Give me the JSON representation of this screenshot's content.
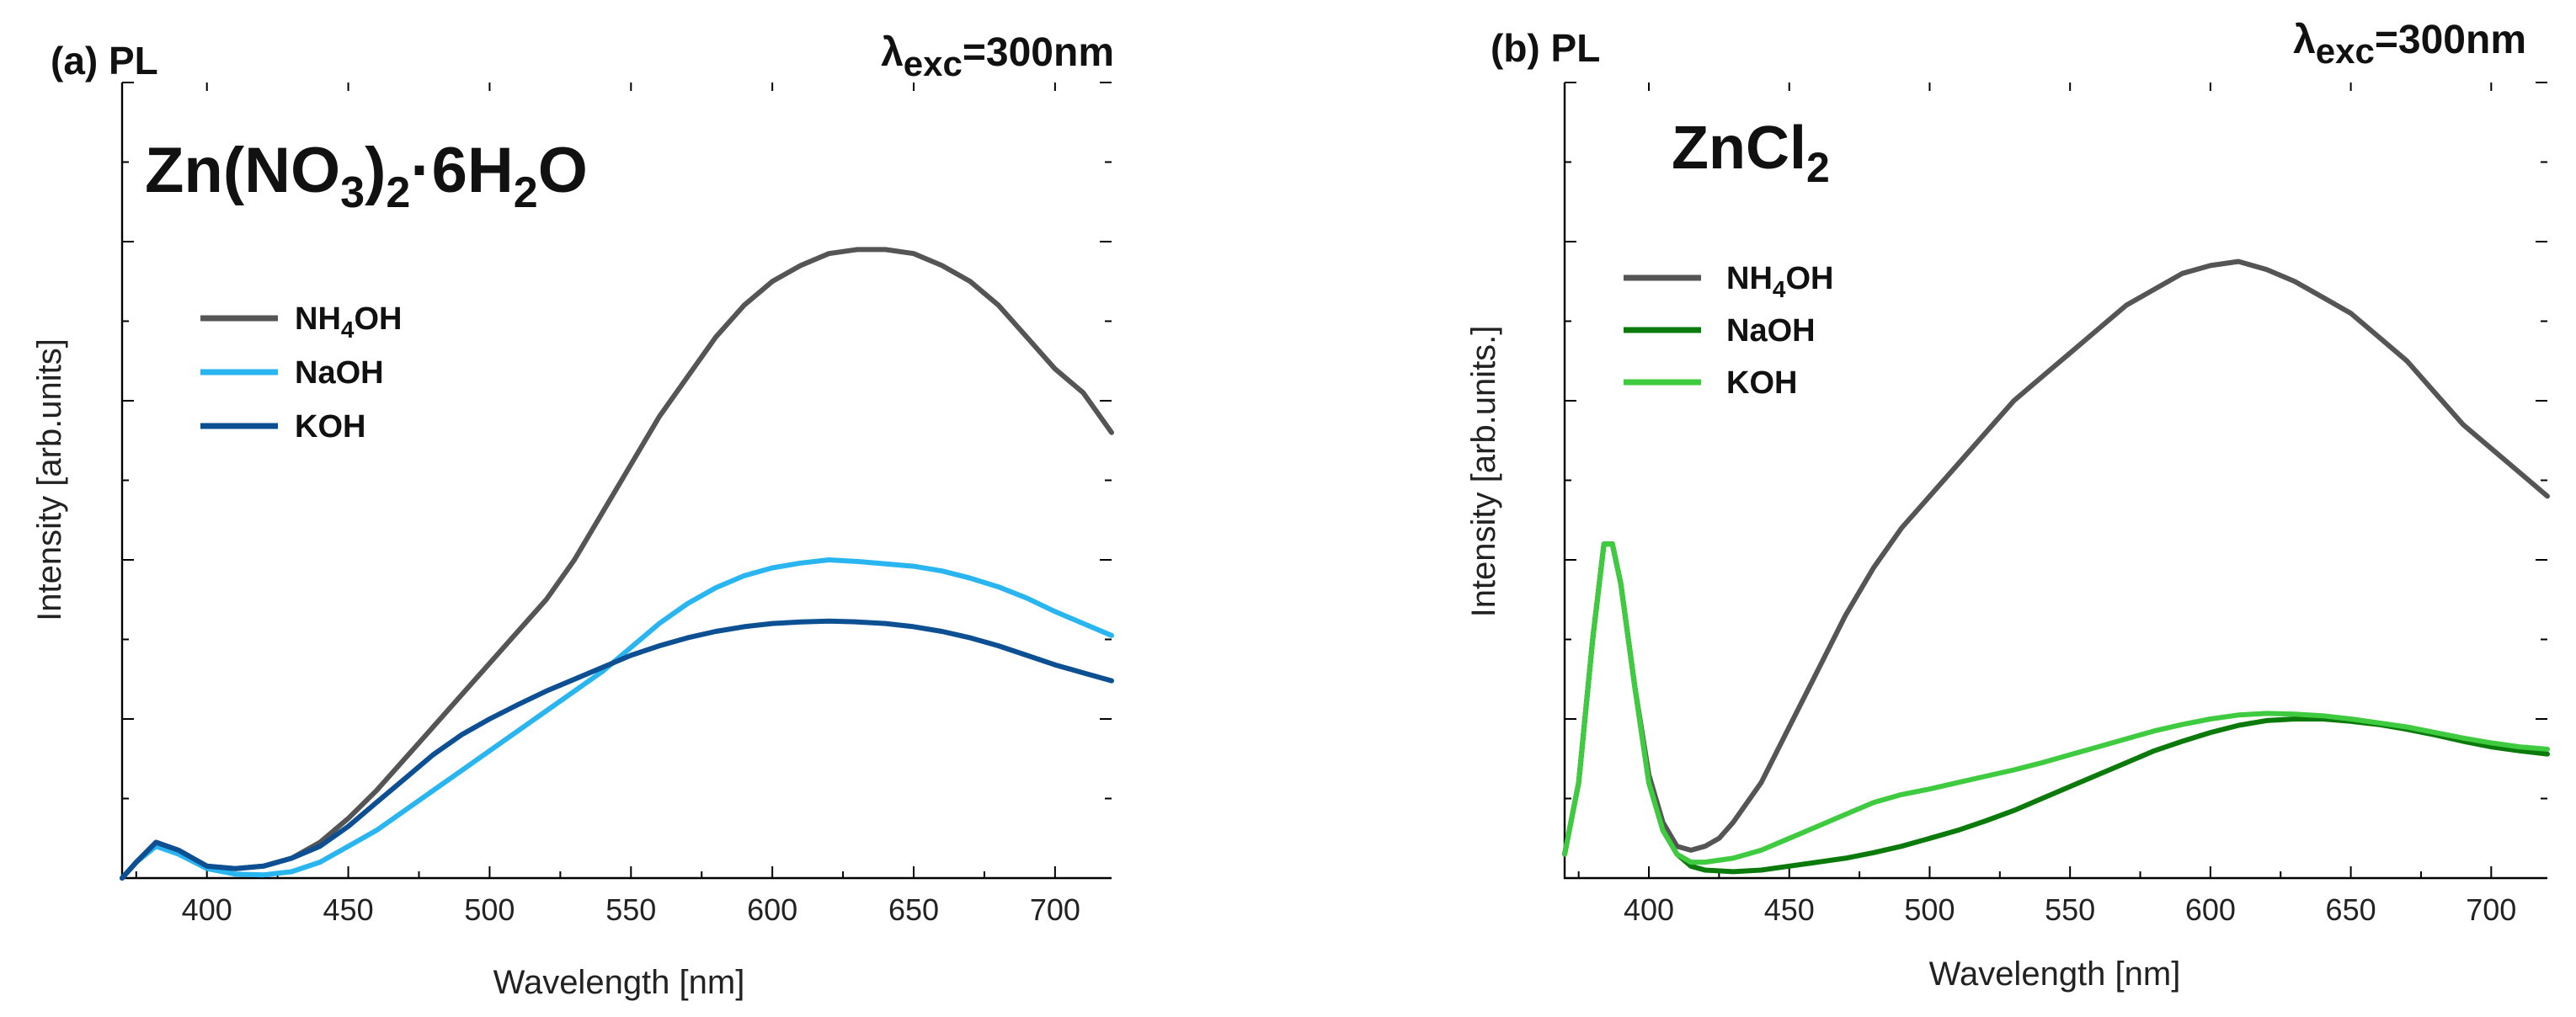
{
  "chart_data": [
    {
      "type": "line",
      "panel_label": "(a) PL",
      "excitation": {
        "symbol": "λ",
        "subscript": "exc",
        "value": "=300nm"
      },
      "compound": {
        "t1": "Zn(NO",
        "sub1": "3",
        "t2": ")",
        "sub2": "2",
        "t3": "·6H",
        "sub3": "2",
        "t4": "O"
      },
      "xlabel": "Wavelength [nm]",
      "ylabel": "Intensity [arb.units]",
      "xlim": [
        370,
        720
      ],
      "ylim": [
        0,
        1.0
      ],
      "x_ticks": [
        400,
        450,
        500,
        550,
        600,
        650,
        700
      ],
      "series": [
        {
          "name": "NH4OH",
          "label_parts": [
            "NH",
            "4",
            "OH"
          ],
          "color": "#555555",
          "points": [
            [
              370,
              0.0
            ],
            [
              375,
              0.02
            ],
            [
              382,
              0.045
            ],
            [
              390,
              0.035
            ],
            [
              400,
              0.015
            ],
            [
              410,
              0.012
            ],
            [
              420,
              0.015
            ],
            [
              430,
              0.025
            ],
            [
              440,
              0.045
            ],
            [
              450,
              0.075
            ],
            [
              460,
              0.11
            ],
            [
              470,
              0.15
            ],
            [
              480,
              0.19
            ],
            [
              490,
              0.23
            ],
            [
              500,
              0.27
            ],
            [
              510,
              0.31
            ],
            [
              520,
              0.35
            ],
            [
              530,
              0.4
            ],
            [
              540,
              0.46
            ],
            [
              550,
              0.52
            ],
            [
              560,
              0.58
            ],
            [
              570,
              0.63
            ],
            [
              580,
              0.68
            ],
            [
              590,
              0.72
            ],
            [
              600,
              0.75
            ],
            [
              610,
              0.77
            ],
            [
              620,
              0.785
            ],
            [
              630,
              0.79
            ],
            [
              640,
              0.79
            ],
            [
              650,
              0.785
            ],
            [
              660,
              0.77
            ],
            [
              670,
              0.75
            ],
            [
              680,
              0.72
            ],
            [
              690,
              0.68
            ],
            [
              700,
              0.64
            ],
            [
              710,
              0.61
            ],
            [
              720,
              0.56
            ]
          ]
        },
        {
          "name": "NaOH",
          "label_parts": [
            "NaOH",
            "",
            ""
          ],
          "color": "#29B5F0",
          "points": [
            [
              370,
              0.0
            ],
            [
              375,
              0.02
            ],
            [
              382,
              0.04
            ],
            [
              390,
              0.03
            ],
            [
              400,
              0.012
            ],
            [
              410,
              0.005
            ],
            [
              420,
              0.004
            ],
            [
              430,
              0.008
            ],
            [
              440,
              0.02
            ],
            [
              450,
              0.04
            ],
            [
              460,
              0.06
            ],
            [
              470,
              0.085
            ],
            [
              480,
              0.11
            ],
            [
              490,
              0.135
            ],
            [
              500,
              0.16
            ],
            [
              510,
              0.185
            ],
            [
              520,
              0.21
            ],
            [
              530,
              0.235
            ],
            [
              540,
              0.26
            ],
            [
              550,
              0.29
            ],
            [
              560,
              0.32
            ],
            [
              570,
              0.345
            ],
            [
              580,
              0.365
            ],
            [
              590,
              0.38
            ],
            [
              600,
              0.39
            ],
            [
              610,
              0.396
            ],
            [
              620,
              0.4
            ],
            [
              630,
              0.398
            ],
            [
              640,
              0.395
            ],
            [
              650,
              0.392
            ],
            [
              660,
              0.386
            ],
            [
              670,
              0.377
            ],
            [
              680,
              0.366
            ],
            [
              690,
              0.352
            ],
            [
              700,
              0.335
            ],
            [
              710,
              0.32
            ],
            [
              720,
              0.305
            ]
          ]
        },
        {
          "name": "KOH",
          "label_parts": [
            "KOH",
            "",
            ""
          ],
          "color": "#0D4F93",
          "points": [
            [
              370,
              0.0
            ],
            [
              375,
              0.02
            ],
            [
              382,
              0.045
            ],
            [
              390,
              0.035
            ],
            [
              400,
              0.015
            ],
            [
              410,
              0.012
            ],
            [
              420,
              0.015
            ],
            [
              430,
              0.025
            ],
            [
              440,
              0.04
            ],
            [
              450,
              0.065
            ],
            [
              460,
              0.095
            ],
            [
              470,
              0.125
            ],
            [
              480,
              0.155
            ],
            [
              490,
              0.18
            ],
            [
              500,
              0.2
            ],
            [
              510,
              0.218
            ],
            [
              520,
              0.235
            ],
            [
              530,
              0.25
            ],
            [
              540,
              0.265
            ],
            [
              550,
              0.28
            ],
            [
              560,
              0.292
            ],
            [
              570,
              0.302
            ],
            [
              580,
              0.31
            ],
            [
              590,
              0.316
            ],
            [
              600,
              0.32
            ],
            [
              610,
              0.322
            ],
            [
              620,
              0.323
            ],
            [
              630,
              0.322
            ],
            [
              640,
              0.32
            ],
            [
              650,
              0.316
            ],
            [
              660,
              0.31
            ],
            [
              670,
              0.302
            ],
            [
              680,
              0.292
            ],
            [
              690,
              0.28
            ],
            [
              700,
              0.268
            ],
            [
              710,
              0.258
            ],
            [
              720,
              0.248
            ]
          ]
        }
      ]
    },
    {
      "type": "line",
      "panel_label": "(b) PL",
      "excitation": {
        "symbol": "λ",
        "subscript": "exc",
        "value": "=300nm"
      },
      "compound": {
        "t1": "ZnCl",
        "sub1": "2",
        "t2": "",
        "sub2": "",
        "t3": "",
        "sub3": "",
        "t4": ""
      },
      "xlabel": "Wavelength [nm]",
      "ylabel": "Intensity [arb.units.]",
      "xlim": [
        370,
        720
      ],
      "ylim": [
        0,
        1.0
      ],
      "x_ticks": [
        400,
        450,
        500,
        550,
        600,
        650,
        700
      ],
      "series": [
        {
          "name": "NH4OH",
          "label_parts": [
            "NH",
            "4",
            "OH"
          ],
          "color": "#555555",
          "points": [
            [
              370,
              0.03
            ],
            [
              375,
              0.12
            ],
            [
              380,
              0.3
            ],
            [
              384,
              0.42
            ],
            [
              387,
              0.42
            ],
            [
              390,
              0.37
            ],
            [
              395,
              0.24
            ],
            [
              400,
              0.13
            ],
            [
              405,
              0.07
            ],
            [
              410,
              0.04
            ],
            [
              415,
              0.035
            ],
            [
              420,
              0.04
            ],
            [
              425,
              0.05
            ],
            [
              430,
              0.07
            ],
            [
              440,
              0.12
            ],
            [
              450,
              0.19
            ],
            [
              460,
              0.26
            ],
            [
              470,
              0.33
            ],
            [
              480,
              0.39
            ],
            [
              490,
              0.44
            ],
            [
              500,
              0.48
            ],
            [
              510,
              0.52
            ],
            [
              520,
              0.56
            ],
            [
              530,
              0.6
            ],
            [
              540,
              0.63
            ],
            [
              550,
              0.66
            ],
            [
              560,
              0.69
            ],
            [
              570,
              0.72
            ],
            [
              580,
              0.74
            ],
            [
              590,
              0.76
            ],
            [
              600,
              0.77
            ],
            [
              610,
              0.775
            ],
            [
              620,
              0.765
            ],
            [
              630,
              0.75
            ],
            [
              640,
              0.73
            ],
            [
              650,
              0.71
            ],
            [
              660,
              0.68
            ],
            [
              670,
              0.65
            ],
            [
              680,
              0.61
            ],
            [
              690,
              0.57
            ],
            [
              700,
              0.54
            ],
            [
              710,
              0.51
            ],
            [
              720,
              0.48
            ]
          ]
        },
        {
          "name": "NaOH",
          "label_parts": [
            "NaOH",
            "",
            ""
          ],
          "color": "#0A7A0A",
          "points": [
            [
              370,
              0.03
            ],
            [
              375,
              0.12
            ],
            [
              380,
              0.3
            ],
            [
              384,
              0.42
            ],
            [
              387,
              0.42
            ],
            [
              390,
              0.37
            ],
            [
              395,
              0.24
            ],
            [
              400,
              0.12
            ],
            [
              405,
              0.06
            ],
            [
              410,
              0.03
            ],
            [
              415,
              0.015
            ],
            [
              420,
              0.01
            ],
            [
              430,
              0.008
            ],
            [
              440,
              0.01
            ],
            [
              450,
              0.015
            ],
            [
              460,
              0.02
            ],
            [
              470,
              0.025
            ],
            [
              480,
              0.032
            ],
            [
              490,
              0.04
            ],
            [
              500,
              0.05
            ],
            [
              510,
              0.06
            ],
            [
              520,
              0.072
            ],
            [
              530,
              0.085
            ],
            [
              540,
              0.1
            ],
            [
              550,
              0.115
            ],
            [
              560,
              0.13
            ],
            [
              570,
              0.145
            ],
            [
              580,
              0.16
            ],
            [
              590,
              0.172
            ],
            [
              600,
              0.183
            ],
            [
              610,
              0.192
            ],
            [
              620,
              0.198
            ],
            [
              630,
              0.2
            ],
            [
              640,
              0.2
            ],
            [
              650,
              0.197
            ],
            [
              660,
              0.193
            ],
            [
              670,
              0.187
            ],
            [
              680,
              0.18
            ],
            [
              690,
              0.172
            ],
            [
              700,
              0.165
            ],
            [
              710,
              0.16
            ],
            [
              720,
              0.156
            ]
          ]
        },
        {
          "name": "KOH",
          "label_parts": [
            "KOH",
            "",
            ""
          ],
          "color": "#3FCB3F",
          "points": [
            [
              370,
              0.03
            ],
            [
              375,
              0.12
            ],
            [
              380,
              0.3
            ],
            [
              384,
              0.42
            ],
            [
              387,
              0.42
            ],
            [
              390,
              0.37
            ],
            [
              395,
              0.24
            ],
            [
              400,
              0.12
            ],
            [
              405,
              0.06
            ],
            [
              410,
              0.03
            ],
            [
              415,
              0.02
            ],
            [
              420,
              0.02
            ],
            [
              430,
              0.025
            ],
            [
              440,
              0.035
            ],
            [
              450,
              0.05
            ],
            [
              460,
              0.065
            ],
            [
              470,
              0.08
            ],
            [
              480,
              0.095
            ],
            [
              490,
              0.105
            ],
            [
              500,
              0.112
            ],
            [
              510,
              0.12
            ],
            [
              520,
              0.128
            ],
            [
              530,
              0.136
            ],
            [
              540,
              0.145
            ],
            [
              550,
              0.155
            ],
            [
              560,
              0.165
            ],
            [
              570,
              0.175
            ],
            [
              580,
              0.185
            ],
            [
              590,
              0.193
            ],
            [
              600,
              0.2
            ],
            [
              610,
              0.205
            ],
            [
              620,
              0.207
            ],
            [
              630,
              0.206
            ],
            [
              640,
              0.204
            ],
            [
              650,
              0.2
            ],
            [
              660,
              0.195
            ],
            [
              670,
              0.19
            ],
            [
              680,
              0.183
            ],
            [
              690,
              0.176
            ],
            [
              700,
              0.17
            ],
            [
              710,
              0.165
            ],
            [
              720,
              0.162
            ]
          ]
        }
      ]
    }
  ]
}
